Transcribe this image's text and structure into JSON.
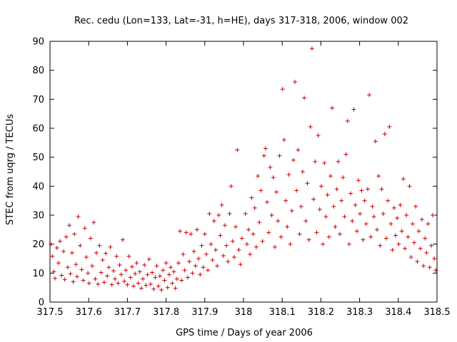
{
  "chart_data": {
    "type": "scatter",
    "title": "Rec. cedu (Lon=133, Lat=-31, h=HE), days 317-318, 2006, window 002",
    "xlabel": "GPS time / Days of year 2006",
    "ylabel": "STEC from uqrg / TECUs",
    "xlim": [
      317.5,
      318.5
    ],
    "ylim": [
      0,
      90
    ],
    "xticks": [
      317.5,
      317.6,
      317.7,
      317.8,
      317.9,
      318,
      318.1,
      318.2,
      318.3,
      318.4,
      318.5
    ],
    "xtick_labels": [
      "317.5",
      "317.6",
      "317.7",
      "317.8",
      "317.9",
      "318",
      "318.1",
      "318.2",
      "318.3",
      "318.4",
      "318.5"
    ],
    "yticks": [
      0,
      10,
      20,
      30,
      40,
      50,
      60,
      70,
      80,
      90
    ],
    "ytick_labels": [
      "0",
      "10",
      "20",
      "30",
      "40",
      "50",
      "60",
      "70",
      "80",
      "90"
    ],
    "marker": "+",
    "color": "#cc0000",
    "grid": false,
    "series": [
      {
        "name": "STEC",
        "points": [
          [
            317.503,
            20.0
          ],
          [
            317.506,
            15.8
          ],
          [
            317.51,
            10.5
          ],
          [
            317.513,
            8.2
          ],
          [
            317.518,
            18.7
          ],
          [
            317.522,
            13.5
          ],
          [
            317.526,
            21.0
          ],
          [
            317.53,
            9.2
          ],
          [
            317.535,
            17.5
          ],
          [
            317.538,
            7.8
          ],
          [
            317.542,
            22.5
          ],
          [
            317.546,
            12.0
          ],
          [
            317.55,
            26.5
          ],
          [
            317.553,
            9.8
          ],
          [
            317.557,
            17.0
          ],
          [
            317.56,
            7.0
          ],
          [
            317.563,
            23.5
          ],
          [
            317.567,
            13.0
          ],
          [
            317.57,
            8.8
          ],
          [
            317.573,
            29.5
          ],
          [
            317.578,
            19.5
          ],
          [
            317.582,
            11.2
          ],
          [
            317.586,
            7.5
          ],
          [
            317.59,
            25.5
          ],
          [
            317.594,
            15.5
          ],
          [
            317.598,
            10.0
          ],
          [
            317.601,
            6.5
          ],
          [
            317.605,
            22.0
          ],
          [
            317.609,
            12.5
          ],
          [
            317.613,
            27.5
          ],
          [
            317.617,
            8.0
          ],
          [
            317.62,
            17.0
          ],
          [
            317.624,
            6.2
          ],
          [
            317.628,
            19.5
          ],
          [
            317.632,
            10.2
          ],
          [
            317.636,
            14.5
          ],
          [
            317.64,
            6.8
          ],
          [
            317.644,
            16.8
          ],
          [
            317.648,
            9.0
          ],
          [
            317.652,
            12.0
          ],
          [
            317.656,
            19.0
          ],
          [
            317.66,
            6.0
          ],
          [
            317.664,
            10.8
          ],
          [
            317.668,
            8.0
          ],
          [
            317.672,
            15.8
          ],
          [
            317.676,
            6.5
          ],
          [
            317.68,
            12.8
          ],
          [
            317.684,
            9.5
          ],
          [
            317.688,
            21.5
          ],
          [
            317.692,
            7.2
          ],
          [
            317.696,
            11.0
          ],
          [
            317.7,
            6.0
          ],
          [
            317.704,
            15.8
          ],
          [
            317.708,
            8.5
          ],
          [
            317.712,
            12.2
          ],
          [
            317.716,
            5.5
          ],
          [
            317.72,
            9.8
          ],
          [
            317.724,
            13.5
          ],
          [
            317.728,
            6.5
          ],
          [
            317.732,
            10.5
          ],
          [
            317.736,
            4.8
          ],
          [
            317.74,
            8.0
          ],
          [
            317.744,
            12.8
          ],
          [
            317.748,
            5.8
          ],
          [
            317.752,
            9.5
          ],
          [
            317.756,
            14.8
          ],
          [
            317.76,
            6.2
          ],
          [
            317.764,
            10.2
          ],
          [
            317.768,
            4.5
          ],
          [
            317.772,
            8.5
          ],
          [
            317.776,
            12.5
          ],
          [
            317.78,
            5.5
          ],
          [
            317.784,
            9.0
          ],
          [
            317.788,
            4.2
          ],
          [
            317.792,
            11.0
          ],
          [
            317.796,
            7.5
          ],
          [
            317.8,
            13.5
          ],
          [
            317.804,
            5.0
          ],
          [
            317.808,
            9.5
          ],
          [
            317.812,
            12.0
          ],
          [
            317.816,
            6.5
          ],
          [
            317.82,
            10.5
          ],
          [
            317.824,
            4.8
          ],
          [
            317.828,
            8.0
          ],
          [
            317.832,
            13.5
          ],
          [
            317.836,
            24.5
          ],
          [
            317.84,
            7.5
          ],
          [
            317.844,
            16.5
          ],
          [
            317.848,
            11.0
          ],
          [
            317.852,
            24.0
          ],
          [
            317.856,
            8.5
          ],
          [
            317.86,
            14.0
          ],
          [
            317.864,
            23.5
          ],
          [
            317.868,
            10.0
          ],
          [
            317.872,
            17.5
          ],
          [
            317.876,
            12.5
          ],
          [
            317.88,
            25.0
          ],
          [
            317.884,
            15.0
          ],
          [
            317.888,
            9.5
          ],
          [
            317.892,
            19.5
          ],
          [
            317.896,
            12.0
          ],
          [
            317.9,
            23.5
          ],
          [
            317.904,
            16.5
          ],
          [
            317.908,
            11.0
          ],
          [
            317.912,
            30.5
          ],
          [
            317.916,
            20.0
          ],
          [
            317.92,
            14.5
          ],
          [
            317.924,
            28.0
          ],
          [
            317.928,
            18.0
          ],
          [
            317.932,
            12.5
          ],
          [
            317.936,
            30.0
          ],
          [
            317.94,
            23.0
          ],
          [
            317.944,
            33.5
          ],
          [
            317.948,
            16.0
          ],
          [
            317.952,
            26.5
          ],
          [
            317.956,
            19.5
          ],
          [
            317.96,
            14.0
          ],
          [
            317.964,
            30.5
          ],
          [
            317.968,
            40.0
          ],
          [
            317.972,
            21.0
          ],
          [
            317.976,
            15.5
          ],
          [
            317.98,
            26.0
          ],
          [
            317.984,
            52.5
          ],
          [
            317.988,
            18.0
          ],
          [
            317.992,
            13.0
          ],
          [
            317.996,
            22.0
          ],
          [
            318.005,
            30.5
          ],
          [
            318.009,
            20.0
          ],
          [
            318.013,
            25.0
          ],
          [
            318.017,
            16.5
          ],
          [
            318.021,
            36.0
          ],
          [
            318.025,
            23.5
          ],
          [
            318.029,
            32.5
          ],
          [
            318.033,
            19.0
          ],
          [
            318.037,
            43.5
          ],
          [
            318.041,
            27.5
          ],
          [
            318.045,
            38.5
          ],
          [
            318.049,
            21.0
          ],
          [
            318.053,
            50.5
          ],
          [
            318.057,
            53.0
          ],
          [
            318.061,
            34.5
          ],
          [
            318.065,
            24.0
          ],
          [
            318.069,
            46.5
          ],
          [
            318.073,
            30.0
          ],
          [
            318.077,
            43.0
          ],
          [
            318.081,
            19.0
          ],
          [
            318.085,
            38.0
          ],
          [
            318.089,
            28.0
          ],
          [
            318.093,
            50.5
          ],
          [
            318.097,
            22.5
          ],
          [
            318.101,
            73.5
          ],
          [
            318.105,
            56.0
          ],
          [
            318.109,
            35.0
          ],
          [
            318.113,
            26.0
          ],
          [
            318.117,
            44.0
          ],
          [
            318.121,
            20.0
          ],
          [
            318.125,
            31.5
          ],
          [
            318.129,
            49.0
          ],
          [
            318.133,
            76.0
          ],
          [
            318.137,
            38.5
          ],
          [
            318.141,
            52.5
          ],
          [
            318.145,
            23.5
          ],
          [
            318.149,
            33.0
          ],
          [
            318.153,
            45.0
          ],
          [
            318.157,
            70.5
          ],
          [
            318.161,
            28.0
          ],
          [
            318.165,
            41.0
          ],
          [
            318.169,
            21.5
          ],
          [
            318.173,
            60.5
          ],
          [
            318.177,
            87.5
          ],
          [
            318.181,
            35.5
          ],
          [
            318.185,
            48.5
          ],
          [
            318.189,
            24.0
          ],
          [
            318.193,
            57.5
          ],
          [
            318.197,
            32.0
          ],
          [
            318.201,
            40.0
          ],
          [
            318.205,
            20.0
          ],
          [
            318.209,
            48.0
          ],
          [
            318.213,
            29.5
          ],
          [
            318.217,
            37.0
          ],
          [
            318.221,
            22.5
          ],
          [
            318.225,
            43.5
          ],
          [
            318.229,
            67.0
          ],
          [
            318.233,
            33.0
          ],
          [
            318.237,
            26.0
          ],
          [
            318.241,
            39.0
          ],
          [
            318.245,
            48.5
          ],
          [
            318.249,
            23.5
          ],
          [
            318.253,
            35.0
          ],
          [
            318.257,
            43.0
          ],
          [
            318.261,
            29.5
          ],
          [
            318.265,
            51.0
          ],
          [
            318.269,
            62.5
          ],
          [
            318.273,
            20.0
          ],
          [
            318.277,
            37.5
          ],
          [
            318.281,
            28.0
          ],
          [
            318.285,
            66.5
          ],
          [
            318.289,
            33.5
          ],
          [
            318.293,
            24.5
          ],
          [
            318.297,
            42.0
          ],
          [
            318.301,
            30.5
          ],
          [
            318.305,
            38.5
          ],
          [
            318.309,
            21.5
          ],
          [
            318.313,
            35.0
          ],
          [
            318.317,
            27.0
          ],
          [
            318.321,
            39.0
          ],
          [
            318.325,
            71.5
          ],
          [
            318.329,
            22.5
          ],
          [
            318.333,
            33.0
          ],
          [
            318.337,
            29.5
          ],
          [
            318.341,
            55.5
          ],
          [
            318.345,
            25.0
          ],
          [
            318.349,
            43.5
          ],
          [
            318.353,
            19.5
          ],
          [
            318.357,
            39.0
          ],
          [
            318.361,
            30.5
          ],
          [
            318.365,
            58.0
          ],
          [
            318.369,
            22.0
          ],
          [
            318.373,
            35.0
          ],
          [
            318.377,
            60.5
          ],
          [
            318.381,
            27.0
          ],
          [
            318.385,
            18.0
          ],
          [
            318.389,
            32.5
          ],
          [
            318.393,
            23.0
          ],
          [
            318.397,
            29.0
          ],
          [
            318.401,
            20.0
          ],
          [
            318.405,
            33.5
          ],
          [
            318.409,
            24.5
          ],
          [
            318.413,
            42.5
          ],
          [
            318.417,
            18.5
          ],
          [
            318.421,
            30.0
          ],
          [
            318.425,
            22.5
          ],
          [
            318.429,
            40.0
          ],
          [
            318.433,
            15.5
          ],
          [
            318.437,
            27.0
          ],
          [
            318.441,
            20.5
          ],
          [
            318.445,
            33.0
          ],
          [
            318.449,
            14.0
          ],
          [
            318.453,
            24.5
          ],
          [
            318.457,
            18.5
          ],
          [
            318.461,
            28.5
          ],
          [
            318.465,
            12.5
          ],
          [
            318.469,
            22.0
          ],
          [
            318.473,
            17.0
          ],
          [
            318.477,
            27.0
          ],
          [
            318.481,
            12.0
          ],
          [
            318.485,
            19.5
          ],
          [
            318.489,
            30.0
          ],
          [
            318.493,
            15.0
          ],
          [
            318.497,
            11.0
          ]
        ]
      }
    ]
  }
}
